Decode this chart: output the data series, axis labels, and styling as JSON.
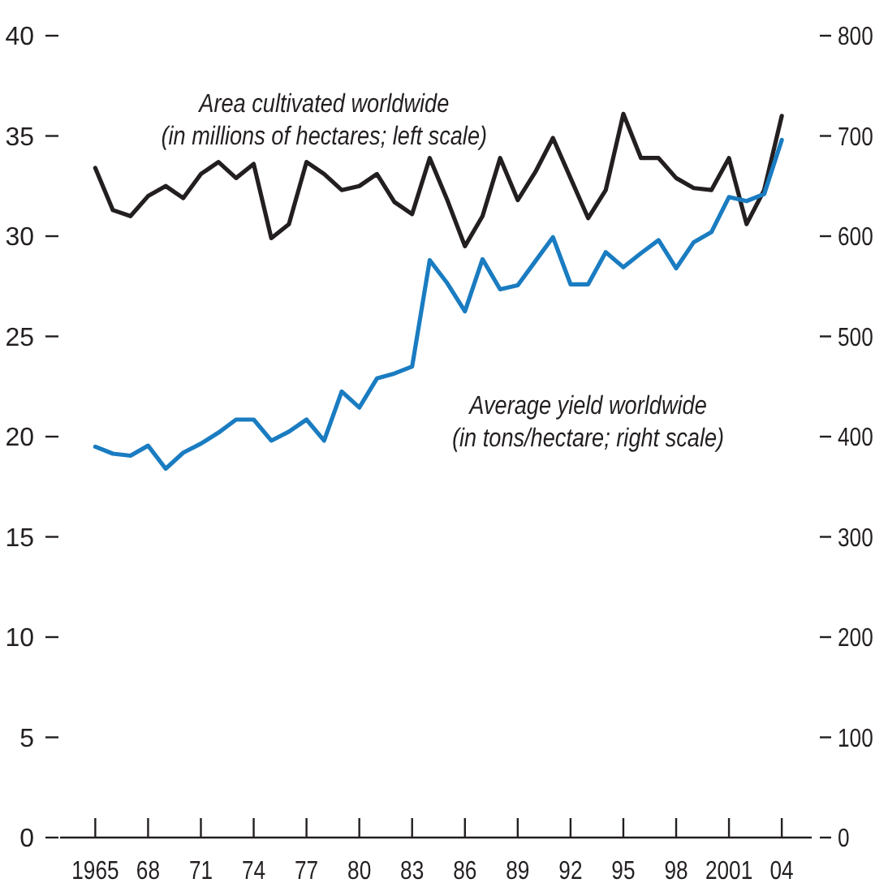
{
  "chart_data": {
    "type": "line",
    "x": [
      1965,
      1966,
      1967,
      1968,
      1969,
      1970,
      1971,
      1972,
      1973,
      1974,
      1975,
      1976,
      1977,
      1978,
      1979,
      1980,
      1981,
      1982,
      1983,
      1984,
      1985,
      1986,
      1987,
      1988,
      1989,
      1990,
      1991,
      1992,
      1993,
      1994,
      1995,
      1996,
      1997,
      1998,
      1999,
      2000,
      2001,
      2002,
      2003,
      2004
    ],
    "series": [
      {
        "name": "Area cultivated worldwide\n(in millions of hectares; left scale)",
        "color": "#231f20",
        "values": [
          33.4,
          31.3,
          31.0,
          32.0,
          32.5,
          31.9,
          33.1,
          33.7,
          32.9,
          33.6,
          29.9,
          30.6,
          33.7,
          33.1,
          32.3,
          32.5,
          33.1,
          31.7,
          31.1,
          33.9,
          31.8,
          29.5,
          31.0,
          33.9,
          31.8,
          33.2,
          34.9,
          32.9,
          30.9,
          32.3,
          36.1,
          33.9,
          33.9,
          32.9,
          32.4,
          32.3,
          33.9,
          30.6,
          32.3,
          36.0
        ]
      },
      {
        "name": "Average yield worldwide\n(in tons/hectare; right scale)",
        "color": "#1a7cc1",
        "axis": "y2",
        "values": [
          390,
          383,
          381,
          391,
          368,
          384,
          393,
          404,
          417,
          417,
          396,
          405,
          417,
          396,
          445,
          429,
          458,
          463,
          470,
          576,
          553,
          525,
          577,
          547,
          551,
          575,
          599,
          552,
          552,
          584,
          569,
          583,
          596,
          568,
          594,
          604,
          639,
          635,
          642,
          696
        ]
      }
    ],
    "xlim": [
      1963,
      2005.7
    ],
    "xticks": [
      {
        "value": 1965,
        "label": "1965"
      },
      {
        "value": 1968,
        "label": "68"
      },
      {
        "value": 1971,
        "label": "71"
      },
      {
        "value": 1974,
        "label": "74"
      },
      {
        "value": 1977,
        "label": "77"
      },
      {
        "value": 1980,
        "label": "80"
      },
      {
        "value": 1983,
        "label": "83"
      },
      {
        "value": 1986,
        "label": "86"
      },
      {
        "value": 1989,
        "label": "89"
      },
      {
        "value": 1992,
        "label": "92"
      },
      {
        "value": 1995,
        "label": "95"
      },
      {
        "value": 1998,
        "label": "98"
      },
      {
        "value": 2001,
        "label": "2001"
      },
      {
        "value": 2004,
        "label": "04"
      }
    ],
    "ylim": [
      0,
      40
    ],
    "yticks": [
      0,
      5,
      10,
      15,
      20,
      25,
      30,
      35,
      40
    ],
    "y2lim": [
      0,
      800
    ],
    "y2ticks": [
      0,
      100,
      200,
      300,
      400,
      500,
      600,
      700,
      800
    ],
    "grid": false,
    "marker": "none",
    "line_style": "solid"
  }
}
